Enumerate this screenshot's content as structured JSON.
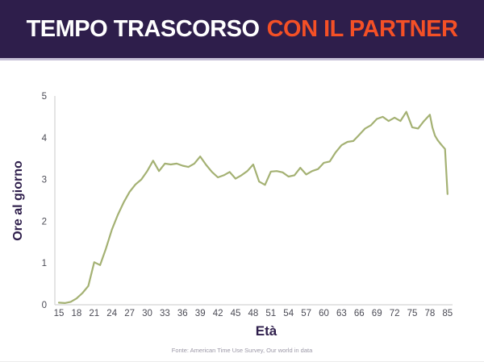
{
  "header": {
    "title_white": "TEMPO TRASCORSO",
    "title_orange": "CON IL PARTNER",
    "bg_color": "#2e1e4b",
    "accent_color": "#f45026"
  },
  "chart_data": {
    "type": "line",
    "title": "TEMPO TRASCORSO CON IL PARTNER",
    "xlabel": "Età",
    "ylabel": "Ore al giorno",
    "x": [
      15,
      16,
      17,
      18,
      19,
      20,
      21,
      22,
      23,
      24,
      25,
      26,
      27,
      28,
      29,
      30,
      31,
      32,
      33,
      34,
      35,
      36,
      37,
      38,
      39,
      40,
      41,
      42,
      43,
      44,
      45,
      46,
      47,
      48,
      49,
      50,
      51,
      52,
      53,
      54,
      55,
      56,
      57,
      58,
      59,
      60,
      61,
      62,
      63,
      64,
      65,
      66,
      67,
      68,
      69,
      70,
      71,
      72,
      73,
      74,
      75,
      76,
      77,
      78,
      79,
      80,
      81,
      82,
      83,
      84,
      85
    ],
    "values": [
      0.05,
      0.04,
      0.07,
      0.15,
      0.28,
      0.45,
      1.02,
      0.95,
      1.35,
      1.8,
      2.15,
      2.45,
      2.7,
      2.88,
      3.0,
      3.2,
      3.45,
      3.2,
      3.38,
      3.36,
      3.38,
      3.33,
      3.3,
      3.38,
      3.55,
      3.35,
      3.18,
      3.05,
      3.1,
      3.18,
      3.02,
      3.1,
      3.2,
      3.36,
      2.95,
      2.87,
      3.19,
      3.2,
      3.17,
      3.07,
      3.1,
      3.28,
      3.12,
      3.2,
      3.25,
      3.4,
      3.43,
      3.65,
      3.82,
      3.9,
      3.92,
      4.07,
      4.22,
      4.3,
      4.45,
      4.5,
      4.4,
      4.48,
      4.4,
      4.62,
      4.25,
      4.22,
      4.4,
      4.55,
      4.25,
      4.05,
      3.95,
      3.87,
      3.8,
      3.73,
      2.65
    ],
    "x_tick_labels": [
      "15",
      "18",
      "21",
      "24",
      "27",
      "30",
      "33",
      "36",
      "39",
      "42",
      "45",
      "48",
      "51",
      "54",
      "57",
      "60",
      "63",
      "66",
      "69",
      "72",
      "75",
      "78",
      "85"
    ],
    "y_ticks": [
      0,
      1,
      2,
      3,
      4,
      5
    ],
    "ylim": [
      0,
      5
    ],
    "grid": false,
    "legend": false,
    "line_color": "#a4b173",
    "axis_color": "#dcdcdc",
    "tick_label_color": "#4b4b55",
    "label_color": "#2e1e4b"
  },
  "footer": {
    "source": "Fonte: American Time Use Survey, Our world in data"
  }
}
